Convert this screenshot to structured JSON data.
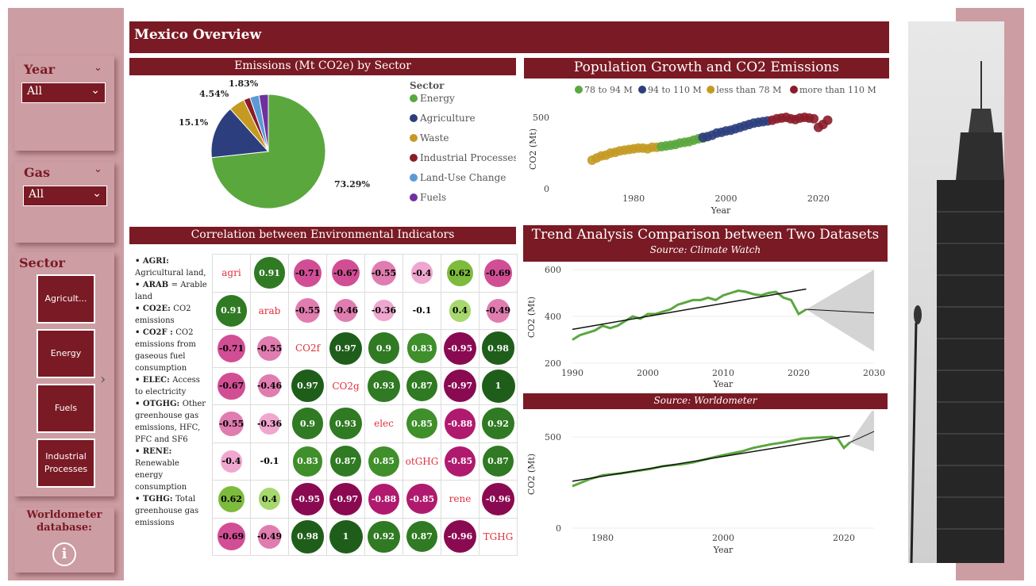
{
  "page": {
    "title": "Mexico Overview"
  },
  "slicers": {
    "year": {
      "label": "Year",
      "value": "All"
    },
    "gas": {
      "label": "Gas",
      "value": "All"
    },
    "sector": {
      "label": "Sector",
      "tiles": [
        "Agricult...",
        "Energy",
        "Fuels",
        "Industrial\nProcesses"
      ]
    },
    "worldometer": {
      "label": "Worldometer database:"
    }
  },
  "pie": {
    "title": "Emissions (Mt CO2e) by Sector",
    "legend_title": "Sector",
    "labels_shown": [
      "73.29%",
      "15.1%",
      "4.54%",
      "1.83%"
    ]
  },
  "corr": {
    "title": "Correlation between Environmental Indicators",
    "glossary": [
      {
        "key": "AGRI:",
        "text": "Agricultural land,"
      },
      {
        "key": "ARAB",
        "text": "= Arable land"
      },
      {
        "key": "CO2E:",
        "text": "CO2 emissions"
      },
      {
        "key": "CO2F :",
        "text": "CO2 emissions from gaseous fuel consumption"
      },
      {
        "key": "ELEC:",
        "text": "Access to electricity"
      },
      {
        "key": "OTGHG:",
        "text": "Other greenhouse gas emissions, HFC, PFC and SF6"
      },
      {
        "key": "RENE:",
        "text": "Renewable energy consumption"
      },
      {
        "key": "TGHG:",
        "text": "Total greenhouse gas emissions"
      }
    ],
    "labels": [
      "agri",
      "arab",
      "CO2f",
      "CO2g",
      "elec",
      "otGHG",
      "rene",
      "TGHG"
    ],
    "matrix": [
      [
        null,
        0.91,
        -0.71,
        -0.67,
        -0.55,
        -0.4,
        0.62,
        -0.69
      ],
      [
        0.91,
        null,
        -0.55,
        -0.46,
        -0.36,
        -0.1,
        0.4,
        -0.49
      ],
      [
        -0.71,
        -0.55,
        null,
        0.97,
        0.9,
        0.83,
        -0.95,
        0.98
      ],
      [
        -0.67,
        -0.46,
        0.97,
        null,
        0.93,
        0.87,
        -0.97,
        1
      ],
      [
        -0.55,
        -0.36,
        0.9,
        0.93,
        null,
        0.85,
        -0.88,
        0.92
      ],
      [
        -0.4,
        -0.1,
        0.83,
        0.87,
        0.85,
        null,
        -0.85,
        0.87
      ],
      [
        0.62,
        0.4,
        -0.95,
        -0.97,
        -0.88,
        -0.85,
        null,
        -0.96
      ],
      [
        -0.69,
        -0.49,
        0.98,
        1,
        0.92,
        0.87,
        -0.96,
        null
      ]
    ]
  },
  "scatter": {
    "title": "Population Growth and CO2 Emissions",
    "xlabel": "Year",
    "ylabel": "CO2 (Mt)",
    "xticks": [
      "1980",
      "2000",
      "2020"
    ],
    "yticks": [
      "500",
      "0"
    ]
  },
  "trend": {
    "title": "Trend Analysis Comparison between Two Datasets",
    "source1": "Source: Climate Watch",
    "source2": "Source: Worldometer",
    "xlabel": "Year",
    "ylabel": "CO2 (Mt)",
    "xticks1": [
      "1990",
      "2000",
      "2010",
      "2020",
      "2030"
    ],
    "yticks1": [
      "600",
      "400",
      "200"
    ],
    "xticks2": [
      "1980",
      "2000",
      "2020"
    ],
    "yticks2": [
      "500",
      "0"
    ]
  },
  "colors": {
    "maroon": "#7a1a24",
    "panel": "#cc9da3",
    "energy": "#5aa73e",
    "agriculture": "#2c3e7d",
    "waste": "#c49a23",
    "industrial": "#8b1c2a",
    "landuse": "#5b9bd5",
    "fuels": "#7030a0"
  },
  "chart_data": [
    {
      "type": "pie",
      "title": "Emissions (Mt CO2e) by Sector",
      "categories": [
        "Energy",
        "Agriculture",
        "Waste",
        "Industrial Processes",
        "Land-Use Change",
        "Fuels"
      ],
      "values": [
        73.29,
        15.1,
        4.54,
        1.83,
        2.6,
        2.64
      ],
      "legend": "right"
    },
    {
      "type": "scatter",
      "title": "Population Growth and CO2 Emissions",
      "xlabel": "Year",
      "ylabel": "CO2 (Mt)",
      "xlim": [
        1970,
        2025
      ],
      "ylim": [
        0,
        600
      ],
      "series": [
        {
          "name": "less than 78 M",
          "x": [
            1971,
            1972,
            1973,
            1974,
            1975,
            1976,
            1977,
            1978,
            1979,
            1980,
            1981,
            1982,
            1983,
            1984,
            1985
          ],
          "y": [
            200,
            215,
            230,
            235,
            250,
            255,
            265,
            270,
            275,
            280,
            285,
            285,
            280,
            290,
            290
          ]
        },
        {
          "name": "78 to 94 M",
          "x": [
            1986,
            1987,
            1988,
            1989,
            1990,
            1991,
            1992,
            1993,
            1994,
            1995
          ],
          "y": [
            295,
            300,
            305,
            310,
            320,
            325,
            330,
            340,
            350,
            355
          ]
        },
        {
          "name": "94 to 110 M",
          "x": [
            1995,
            1996,
            1997,
            1998,
            1999,
            2000,
            2001,
            2002,
            2003,
            2004,
            2005,
            2006,
            2007,
            2008,
            2009
          ],
          "y": [
            360,
            365,
            375,
            390,
            395,
            405,
            410,
            420,
            430,
            440,
            450,
            460,
            465,
            470,
            475
          ]
        },
        {
          "name": "more than 110 M",
          "x": [
            2010,
            2011,
            2012,
            2013,
            2014,
            2015,
            2016,
            2017,
            2018,
            2019,
            2020,
            2021,
            2022
          ],
          "y": [
            480,
            490,
            495,
            500,
            490,
            485,
            495,
            500,
            495,
            490,
            430,
            450,
            480
          ]
        }
      ],
      "legend": "top"
    },
    {
      "type": "line",
      "title": "Source: Climate Watch",
      "xlabel": "Year",
      "ylabel": "CO2 (Mt)",
      "xlim": [
        1990,
        2030
      ],
      "ylim": [
        200,
        600
      ],
      "x": [
        1990,
        1991,
        1992,
        1993,
        1994,
        1995,
        1996,
        1997,
        1998,
        1999,
        2000,
        2001,
        2002,
        2003,
        2004,
        2005,
        2006,
        2007,
        2008,
        2009,
        2010,
        2011,
        2012,
        2013,
        2014,
        2015,
        2016,
        2017,
        2018,
        2019,
        2020,
        2021
      ],
      "y": [
        300,
        320,
        330,
        340,
        360,
        350,
        360,
        380,
        400,
        390,
        410,
        410,
        420,
        430,
        450,
        460,
        470,
        470,
        480,
        470,
        490,
        500,
        510,
        505,
        495,
        490,
        500,
        505,
        480,
        470,
        410,
        430
      ]
    },
    {
      "type": "line",
      "title": "Source: Worldometer",
      "xlabel": "Year",
      "ylabel": "CO2 (Mt)",
      "xlim": [
        1975,
        2025
      ],
      "ylim": [
        0,
        600
      ],
      "x": [
        1975,
        1978,
        1980,
        1983,
        1985,
        1988,
        1990,
        1993,
        1995,
        1998,
        2000,
        2003,
        2005,
        2008,
        2010,
        2013,
        2015,
        2018,
        2019,
        2020,
        2021
      ],
      "y": [
        230,
        270,
        290,
        300,
        310,
        325,
        340,
        350,
        360,
        385,
        400,
        420,
        440,
        460,
        470,
        490,
        495,
        500,
        490,
        440,
        470
      ]
    }
  ]
}
